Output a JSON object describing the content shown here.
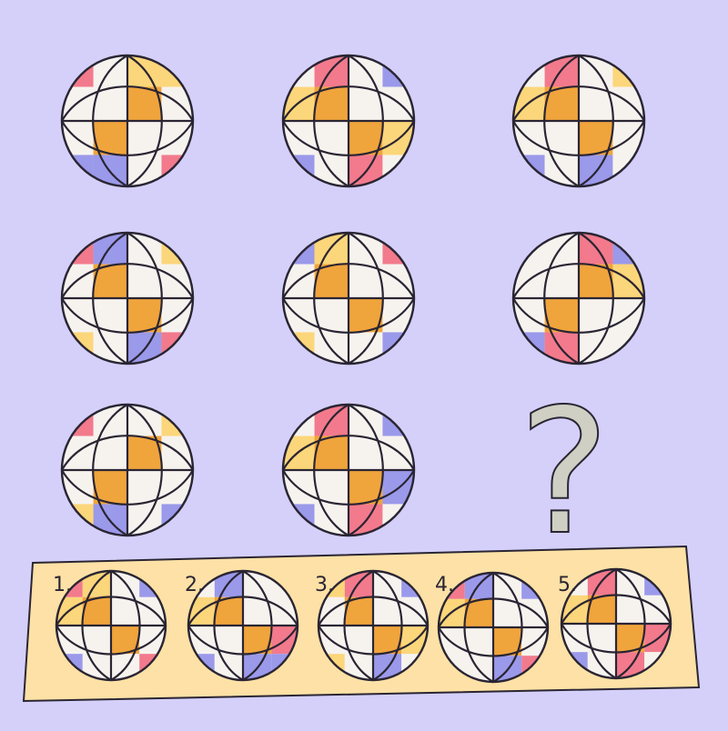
{
  "puzzle": {
    "question_mark": "?",
    "colors": {
      "background": "#d4d0fa",
      "white": "#f6f3ef",
      "orange": "#f0a43c",
      "pink": "#f27a8c",
      "blue": "#9b99ea",
      "yellow": "#fcd67a",
      "outline": "#2a2533",
      "answer_panel": "#fde1a6",
      "question_mark": "#cfcfc3"
    },
    "balls": [
      {
        "orientation": "H",
        "corners": {
          "tl": "yellow",
          "tr": "pink",
          "bl": "pink",
          "br": "blue"
        },
        "mids": [
          "white",
          "white",
          "yellow",
          "blue"
        ]
      },
      {
        "orientation": "V",
        "corners": {
          "tl": "white",
          "tr": "blue",
          "bl": "blue",
          "br": "white"
        },
        "mids": [
          "pink",
          "pink",
          "yellow",
          "yellow"
        ]
      },
      {
        "orientation": "V",
        "corners": {
          "tl": "white",
          "tr": "yellow",
          "bl": "blue",
          "br": "white"
        },
        "mids": [
          "pink",
          "blue",
          "yellow",
          "white"
        ]
      },
      {
        "orientation": "V",
        "corners": {
          "tl": "pink",
          "tr": "yellow",
          "bl": "yellow",
          "br": "pink"
        },
        "mids": [
          "blue",
          "blue",
          "white",
          "white"
        ]
      },
      {
        "orientation": "V",
        "corners": {
          "tl": "blue",
          "tr": "pink",
          "bl": "yellow",
          "br": "blue"
        },
        "mids": [
          "yellow",
          "white",
          "white",
          "white"
        ]
      },
      {
        "orientation": "H",
        "corners": {
          "tl": "blue",
          "tr": "white",
          "bl": "white",
          "br": "blue"
        },
        "mids": [
          "yellow",
          "white",
          "pink",
          "pink"
        ]
      },
      {
        "orientation": "H",
        "corners": {
          "tl": "yellow",
          "tr": "blue",
          "bl": "pink",
          "br": "yellow"
        },
        "mids": [
          "white",
          "white",
          "white",
          "blue"
        ]
      },
      {
        "orientation": "V",
        "corners": {
          "tl": "white",
          "tr": "blue",
          "bl": "blue",
          "br": "white"
        },
        "mids": [
          "pink",
          "pink",
          "yellow",
          "blue"
        ]
      }
    ],
    "options": [
      {
        "label": "1.",
        "orientation": "V",
        "corners": {
          "tl": "pink",
          "tr": "blue",
          "bl": "blue",
          "br": "pink"
        },
        "mids": [
          "yellow",
          "white",
          "yellow",
          "white"
        ]
      },
      {
        "label": "2.",
        "orientation": "V",
        "corners": {
          "tl": "white",
          "tr": "white",
          "bl": "blue",
          "br": "blue"
        },
        "mids": [
          "blue",
          "blue",
          "yellow",
          "pink"
        ]
      },
      {
        "label": "3.",
        "orientation": "V",
        "corners": {
          "tl": "yellow",
          "tr": "blue",
          "bl": "yellow",
          "br": "white"
        },
        "mids": [
          "pink",
          "blue",
          "white",
          "yellow"
        ]
      },
      {
        "label": "4.",
        "orientation": "V",
        "corners": {
          "tl": "pink",
          "tr": "blue",
          "bl": "white",
          "br": "pink"
        },
        "mids": [
          "blue",
          "blue",
          "yellow",
          "white"
        ]
      },
      {
        "label": "5.",
        "orientation": "V",
        "corners": {
          "tl": "white",
          "tr": "blue",
          "bl": "blue",
          "br": "white"
        },
        "mids": [
          "pink",
          "pink",
          "yellow",
          "pink"
        ]
      }
    ]
  }
}
